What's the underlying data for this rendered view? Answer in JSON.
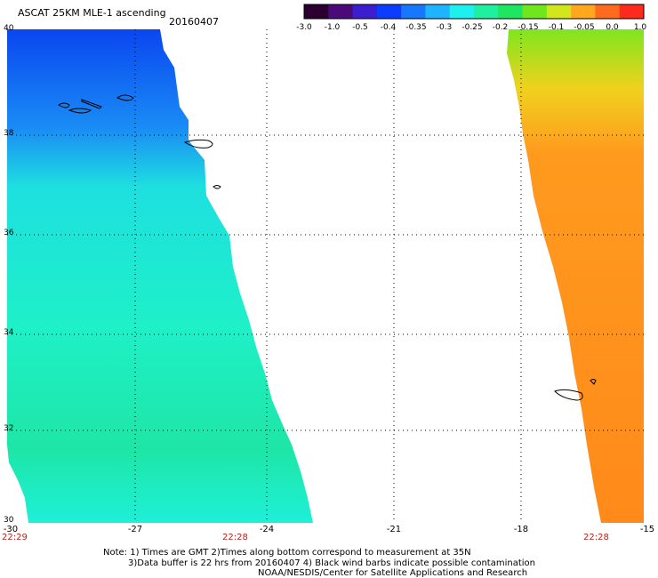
{
  "header": {
    "title": "ASCAT 25KM MLE-1 ascending",
    "date": "20160407"
  },
  "colorbar": {
    "labels": [
      "-3.0",
      "-1.0",
      "-0.5",
      "-0.4",
      "-0.35",
      "-0.3",
      "-0.25",
      "-0.2",
      "-0.15",
      "-0.1",
      "-0.05",
      "0.0",
      "1.0"
    ],
    "colors": [
      "#2b0030",
      "#4a0b78",
      "#3a1ed0",
      "#0a3dff",
      "#1778ff",
      "#1fb4ff",
      "#1ef0f0",
      "#1ef0a0",
      "#1ee660",
      "#70e61e",
      "#d2e61e",
      "#ffa81e",
      "#ff6a1e",
      "#ff2a1e"
    ]
  },
  "map": {
    "lon_ticks": [
      "-30",
      "-27",
      "-24",
      "-21",
      "-18",
      "-15"
    ],
    "lat_ticks": [
      "40",
      "38",
      "36",
      "34",
      "32",
      "30"
    ],
    "times": {
      "left": "22:29",
      "mid": "22:28",
      "right": "22:28"
    }
  },
  "swaths": {
    "west": {
      "colors": [
        "#1f5cf0",
        "#1ee8d2",
        "#1ef0c0",
        "#1ee6a0"
      ]
    },
    "east": {
      "colors": [
        "#ff8c1a",
        "#ffa21e",
        "#d9ea1e",
        "#88e61e"
      ]
    }
  },
  "notes": [
    "Note: 1) Times are GMT 2)Times along bottom correspond to measurement at 35N",
    "3)Data buffer is 22 hrs from 20160407 4) Black wind barbs indicate possible contamination",
    "NOAA/NESDIS/Center for Satellite Applications and Research"
  ]
}
